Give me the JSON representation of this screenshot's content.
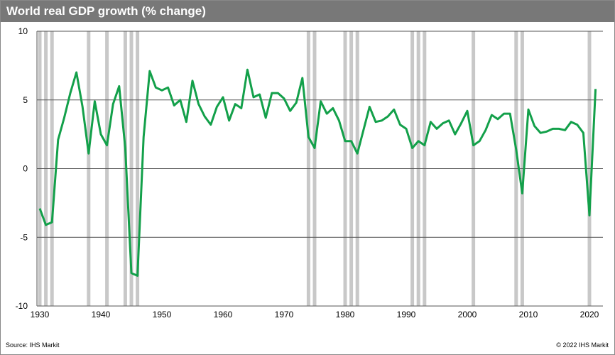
{
  "chart_data": {
    "type": "line",
    "title": "World real GDP growth (% change)",
    "xlabel": "",
    "ylabel": "",
    "ylim": [
      -10,
      10
    ],
    "xlim": [
      1930,
      2021
    ],
    "yticks": [
      "10",
      "5",
      "0",
      "-5",
      "-10"
    ],
    "ytick_values": [
      10,
      5,
      0,
      -5,
      -10
    ],
    "xticks": [
      "1930",
      "1940",
      "1950",
      "1960",
      "1970",
      "1980",
      "1990",
      "2000",
      "2010",
      "2020"
    ],
    "xtick_values": [
      1930,
      1940,
      1950,
      1960,
      1970,
      1980,
      1990,
      2000,
      2010,
      2020
    ],
    "grid": true,
    "series": [
      {
        "name": "World real GDP growth",
        "color": "#13a04a",
        "x_start": 1930,
        "values": [
          -2.9,
          -4.1,
          -3.9,
          2.1,
          3.7,
          5.5,
          7.0,
          4.5,
          1.1,
          4.9,
          2.5,
          1.7,
          4.7,
          6.0,
          1.5,
          -7.6,
          -7.8,
          2.3,
          7.1,
          5.9,
          5.7,
          5.9,
          4.6,
          5.0,
          3.4,
          6.4,
          4.7,
          3.8,
          3.2,
          4.5,
          5.2,
          3.5,
          4.7,
          4.4,
          7.2,
          5.2,
          5.4,
          3.7,
          5.5,
          5.5,
          5.1,
          4.2,
          4.8,
          6.6,
          2.3,
          1.5,
          4.9,
          4.0,
          4.4,
          3.5,
          2.0,
          2.0,
          1.1,
          2.8,
          4.5,
          3.4,
          3.5,
          3.8,
          4.3,
          3.2,
          2.9,
          1.5,
          2.0,
          1.7,
          3.4,
          2.9,
          3.3,
          3.5,
          2.5,
          3.3,
          4.2,
          1.7,
          2.0,
          2.8,
          3.9,
          3.6,
          4.0,
          4.0,
          1.4,
          -1.8,
          4.3,
          3.1,
          2.6,
          2.7,
          2.9,
          2.9,
          2.8,
          3.4,
          3.2,
          2.6,
          -3.4,
          5.8
        ]
      }
    ],
    "recession_years": [
      1930,
      1931,
      1932,
      1938,
      1941,
      1944,
      1945,
      1946,
      1974,
      1975,
      1980,
      1981,
      1982,
      1991,
      1992,
      1993,
      2001,
      2008,
      2009,
      2020
    ],
    "recession_color": "#c8c8c8"
  },
  "footer": {
    "source": "Source: IHS Markit",
    "copyright": "© 2022 IHS Markit"
  }
}
